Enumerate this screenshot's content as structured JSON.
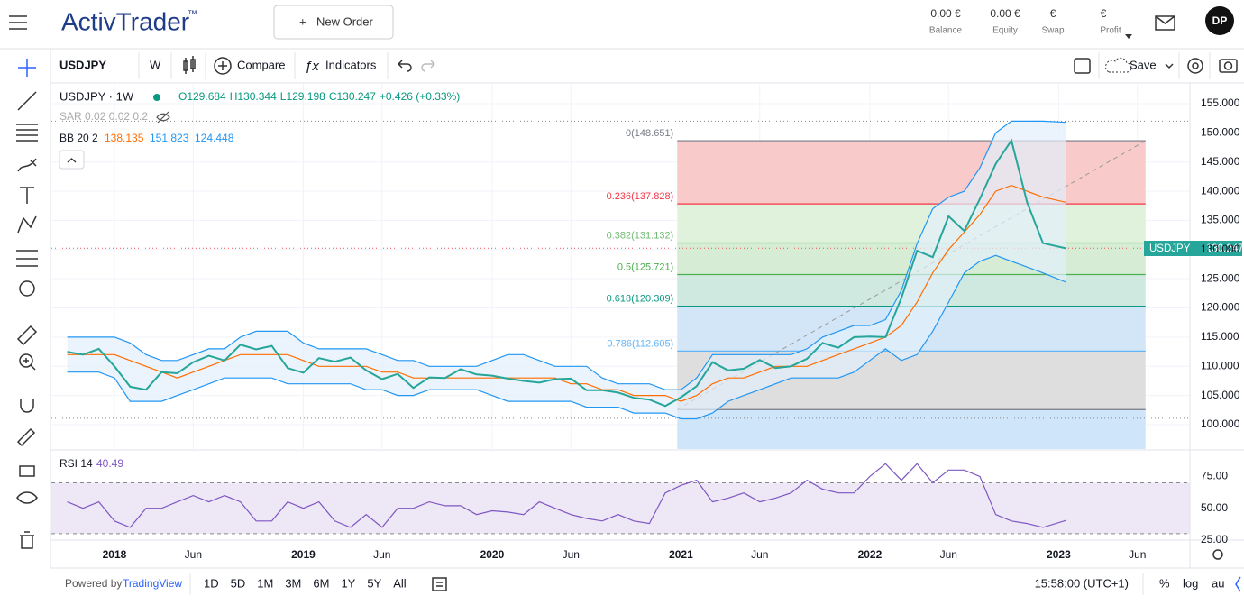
{
  "header": {
    "logo": "ActivTrader",
    "logo_mark": "™",
    "new_order": "New Order",
    "stats": [
      {
        "value": "0.00 €",
        "label": "Balance"
      },
      {
        "value": "0.00 €",
        "label": "Equity"
      },
      {
        "value": "€",
        "label": "Swap"
      },
      {
        "value": "€",
        "label": "Profit"
      }
    ],
    "avatar": "DP"
  },
  "toolbar": {
    "symbol": "USDJPY",
    "interval": "W",
    "compare": "Compare",
    "indicators": "Indicators",
    "save": "Save"
  },
  "legend": {
    "title": "USDJPY · 1W",
    "ohlc": [
      "O129.684",
      "H130.344",
      "L129.198",
      "C130.247",
      "+0.426 (+0.33%)"
    ],
    "sar": "SAR 0.02 0.02 0.2",
    "bb": "BB 20 2",
    "bb_values": [
      "138.135",
      "151.823",
      "124.448"
    ],
    "rsi": "RSI 14",
    "rsi_value": "40.49"
  },
  "price_tag": {
    "symbol": "USDJPY",
    "value": "130.247"
  },
  "footer": {
    "powered": "Powered by",
    "brand": "TradingView",
    "ranges": [
      "1D",
      "5D",
      "1M",
      "3M",
      "6M",
      "1Y",
      "5Y",
      "All"
    ],
    "clock": "15:58:00 (UTC+1)",
    "percent": "%",
    "log": "log",
    "auto": "au"
  },
  "chart_data": {
    "type": "line",
    "x": [
      2017.75,
      2017.833,
      2017.917,
      2018,
      2018.083,
      2018.167,
      2018.25,
      2018.333,
      2018.417,
      2018.5,
      2018.583,
      2018.667,
      2018.75,
      2018.833,
      2018.917,
      2019,
      2019.083,
      2019.167,
      2019.25,
      2019.333,
      2019.417,
      2019.5,
      2019.583,
      2019.667,
      2019.75,
      2019.833,
      2019.917,
      2020,
      2020.083,
      2020.167,
      2020.25,
      2020.333,
      2020.417,
      2020.5,
      2020.583,
      2020.667,
      2020.75,
      2020.833,
      2020.917,
      2021,
      2021.083,
      2021.167,
      2021.25,
      2021.333,
      2021.417,
      2021.5,
      2021.583,
      2021.667,
      2021.75,
      2021.833,
      2021.917,
      2022,
      2022.083,
      2022.167,
      2022.25,
      2022.333,
      2022.417,
      2022.5,
      2022.583,
      2022.667,
      2022.75,
      2022.833,
      2022.917,
      2023.04
    ],
    "series": [
      {
        "name": "USDJPY",
        "color": "#26a69a",
        "values": [
          112.5,
          112,
          113,
          110,
          106.5,
          106,
          109,
          108.8,
          110.7,
          111.8,
          111,
          113.7,
          112.9,
          113.5,
          109.7,
          108.9,
          111.4,
          110.8,
          111.5,
          109.3,
          107.8,
          108.7,
          106.3,
          108.1,
          108,
          109.5,
          108.6,
          108.4,
          107.9,
          107.5,
          107.2,
          107.8,
          107.9,
          105.9,
          105.9,
          105.5,
          104.6,
          104.3,
          103.2,
          104.7,
          106.6,
          110.7,
          109.3,
          109.6,
          111.1,
          109.7,
          110,
          111.3,
          114,
          113.2,
          115,
          115.1,
          115,
          121.7,
          129.8,
          128.7,
          135.7,
          133.2,
          138.7,
          144.7,
          148.7,
          138.1,
          131.1,
          130.2
        ]
      }
    ],
    "bb": {
      "upper_color": "#2196f3",
      "basis_color": "#ff6d00",
      "fill": "#e3f0fb",
      "upper": [
        115,
        115,
        115,
        115,
        114,
        112,
        111,
        111,
        112,
        113,
        113,
        115,
        116,
        116,
        116,
        114,
        113,
        113,
        113,
        113,
        112,
        111,
        111,
        110,
        110,
        110,
        110,
        111,
        112,
        112,
        111,
        110,
        110,
        110,
        108,
        107,
        107,
        107,
        106,
        106,
        108,
        112,
        112,
        112,
        112,
        112,
        112,
        113,
        115,
        116,
        117,
        117,
        118,
        123,
        131,
        137,
        139,
        140,
        144,
        150,
        152,
        152,
        152,
        151.8
      ],
      "basis": [
        112,
        112,
        112,
        112,
        111,
        110,
        109,
        108,
        109,
        110,
        111,
        112,
        112,
        112,
        112,
        111,
        110,
        110,
        110,
        110,
        109,
        109,
        108,
        108,
        108,
        108,
        108,
        108,
        108,
        108,
        108,
        108,
        107,
        107,
        106,
        106,
        105,
        105,
        105,
        104,
        105,
        107,
        108,
        108,
        109,
        110,
        110,
        110,
        111,
        112,
        113,
        114,
        115,
        117,
        121,
        126,
        130,
        133,
        136,
        140,
        141,
        140,
        139,
        138.1
      ],
      "lower": [
        109,
        109,
        109,
        108,
        104,
        104,
        104,
        105,
        106,
        107,
        108,
        108,
        108,
        108,
        107,
        107,
        107,
        107,
        107,
        106,
        106,
        105,
        105,
        106,
        106,
        106,
        106,
        105,
        104,
        104,
        104,
        104,
        104,
        103,
        103,
        103,
        102,
        102,
        102,
        101,
        101,
        102,
        104,
        105,
        106,
        107,
        108,
        108,
        108,
        108,
        109,
        111,
        113,
        111,
        112,
        116,
        121,
        126,
        128,
        129,
        128,
        127,
        126,
        124.4
      ]
    },
    "fib": {
      "x": [
        2020.98,
        2023.46
      ],
      "levels": [
        {
          "value": 148.651,
          "label": "0(148.651)",
          "color": "#787b86",
          "zone": "#f9caca"
        },
        {
          "value": 137.828,
          "label": "0.236(137.828)",
          "color": "#f23645",
          "zone": "#e0f1dc"
        },
        {
          "value": 131.132,
          "label": "0.382(131.132)",
          "color": "#6dbb6f",
          "zone": "#d6ecd4"
        },
        {
          "value": 125.721,
          "label": "0.5(125.721)",
          "color": "#4caf50",
          "zone": "#cfe9e0"
        },
        {
          "value": 120.309,
          "label": "0.618(120.309)",
          "color": "#089981",
          "zone": "#d3e6f8"
        },
        {
          "value": 112.605,
          "label": "0.786(112.605)",
          "color": "#64b5f6",
          "zone": "#dedede"
        },
        {
          "value": 102.59,
          "color": "#787b86",
          "zone": "#cfe5fa"
        }
      ]
    },
    "high_line": 152.0,
    "low_line": 101.1,
    "last_price": 130.247,
    "xlim": [
      2017.666,
      2023.695
    ],
    "xticks": [
      {
        "value": 2018,
        "label": "2018"
      },
      {
        "value": 2018.417,
        "label": "Jun"
      },
      {
        "value": 2019,
        "label": "2019"
      },
      {
        "value": 2019.417,
        "label": "Jun"
      },
      {
        "value": 2020,
        "label": "2020"
      },
      {
        "value": 2020.417,
        "label": "Jun"
      },
      {
        "value": 2021,
        "label": "2021"
      },
      {
        "value": 2021.417,
        "label": "Jun"
      },
      {
        "value": 2022,
        "label": "2022"
      },
      {
        "value": 2022.417,
        "label": "Jun"
      },
      {
        "value": 2023,
        "label": "2023"
      },
      {
        "value": 2023.417,
        "label": "Jun"
      }
    ],
    "ylim": [
      95.83,
      158.55
    ],
    "yticks": [
      {
        "value": 100,
        "label": "100.000"
      },
      {
        "value": 105,
        "label": "105.000"
      },
      {
        "value": 110,
        "label": "110.000"
      },
      {
        "value": 115,
        "label": "115.000"
      },
      {
        "value": 120,
        "label": "120.000"
      },
      {
        "value": 125,
        "label": "125.000"
      },
      {
        "value": 130,
        "label": "130.000"
      },
      {
        "value": 135,
        "label": "135.000"
      },
      {
        "value": 140,
        "label": "140.000"
      },
      {
        "value": 145,
        "label": "145.000"
      },
      {
        "value": 150,
        "label": "150.000"
      },
      {
        "value": 155,
        "label": "155.000"
      }
    ],
    "grid": true,
    "rsi": {
      "color": "#7e57c2",
      "band": [
        30,
        70
      ],
      "band_fill": "#ede7f6",
      "values": [
        55,
        50,
        55,
        40,
        35,
        50,
        50,
        55,
        60,
        55,
        60,
        55,
        40,
        40,
        55,
        50,
        55,
        40,
        35,
        45,
        35,
        50,
        50,
        55,
        52,
        52,
        45,
        48,
        47,
        45,
        55,
        50,
        45,
        42,
        40,
        45,
        40,
        38,
        62,
        68,
        72,
        55,
        58,
        62,
        55,
        58,
        62,
        72,
        65,
        62,
        62,
        75,
        85,
        72,
        85,
        70,
        80,
        80,
        75,
        45,
        40,
        38,
        35,
        40.49
      ],
      "ylim": [
        25.7,
        95.1
      ],
      "yticks": [
        {
          "value": 25,
          "label": "25.00"
        },
        {
          "value": 50,
          "label": "50.00"
        },
        {
          "value": 75,
          "label": "75.00"
        }
      ]
    }
  }
}
